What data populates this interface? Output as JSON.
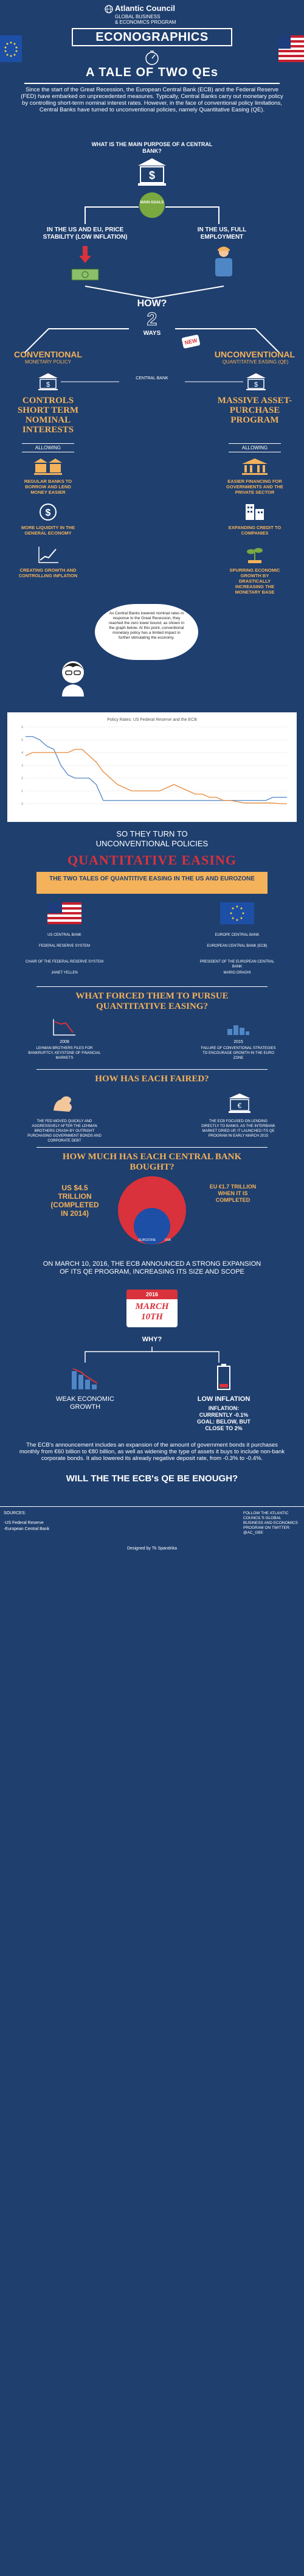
{
  "header": {
    "org": "Atlantic Council",
    "program_line1": "GLOBAL BUSINESS",
    "program_line2": "& ECONOMICS PROGRAM",
    "econographics": "ECONOGRAPHICS",
    "main_title": "A TALE OF TWO QEs"
  },
  "intro": {
    "text": "Since the start of the Great Recession, the European Central Bank (ECB) and the Federal Reserve (FED) have embarked on unprecedented measures. Typically, Central Banks carry out monetary policy by controlling short-term nominal interest rates. However, in the face of conventional policy limitations, Central Banks have turned to unconventional policies, namely Quantitative Easing (QE).",
    "question": "WHAT IS THE MAIN PURPOSE OF A CENTRAL BANK?"
  },
  "purpose": {
    "bubble": "MAIN GOALS",
    "left": "IN THE US AND EU, PRICE STABILITY (LOW INFLATION)",
    "right": "IN THE US, FULL EMPLOYMENT"
  },
  "how": {
    "question": "HOW?",
    "number": "2",
    "ways": "WAYS"
  },
  "conventional": {
    "title": "CONVENTIONAL",
    "subtitle": "MONETARY POLICY",
    "central_bank": "CENTRAL BANK",
    "action": "CONTROLS SHORT TERM NOMINAL INTERESTS",
    "allowing": "ALLOWING",
    "step1": "REGULAR BANKS TO BORROW AND LEND MONEY EASIER",
    "step2": "MORE LIQUIDITY IN THE GENERAL ECONOMY",
    "step3": "CREATING GROWTH AND CONTROLLING INFLATION"
  },
  "unconventional": {
    "badge": "NEW",
    "title": "UNCONVENTIONAL",
    "subtitle": "QUANTITATIVE EASING (QE)",
    "action": "MASSIVE ASSET-PURCHASE PROGRAM",
    "allowing": "ALLOWING",
    "step1": "EASIER FINANCING FOR GOVERNMENTS AND THE PRIVATE SECTOR",
    "step2": "EXPANDING CREDIT TO COMPANIES",
    "step3": "SPURRING ECONOMIC GROWTH BY DRASTICALLY INCREASING THE MONETARY BASE"
  },
  "speech": {
    "text": "As Central Banks lowered nominal rates in response to the Great Recession, they reached the zero lower bound, as shown in the graph below. At this point, conventional monetary policy has a limited impact in further stimulating the economy."
  },
  "chart_data": {
    "type": "line",
    "title": "Policy Rates: US Federal Reserve and the ECB",
    "series": [
      {
        "name": "US Federal Reserve",
        "color": "#4f86c6",
        "values": [
          5.25,
          5.25,
          5.0,
          4.5,
          4.25,
          3.0,
          2.25,
          2.0,
          2.0,
          2.0,
          1.5,
          0.25,
          0.25,
          0.25,
          0.25,
          0.25,
          0.25,
          0.25,
          0.25,
          0.25,
          0.25,
          0.25,
          0.25,
          0.25,
          0.25,
          0.25,
          0.25,
          0.25,
          0.25,
          0.25,
          0.25,
          0.25,
          0.25,
          0.25,
          0.25,
          0.5,
          0.5,
          0.5
        ]
      },
      {
        "name": "ECB",
        "color": "#e8893a",
        "values": [
          3.75,
          4.0,
          4.0,
          4.0,
          4.0,
          4.0,
          4.0,
          4.25,
          4.25,
          3.75,
          3.25,
          2.5,
          2.0,
          1.5,
          1.25,
          1.0,
          1.0,
          1.0,
          1.0,
          1.0,
          1.25,
          1.5,
          1.25,
          1.0,
          0.75,
          0.75,
          0.5,
          0.5,
          0.25,
          0.25,
          0.15,
          0.05,
          0.05,
          0.05,
          0.05,
          0.05,
          0.0,
          0.0
        ]
      }
    ],
    "ylim": [
      0,
      6
    ]
  },
  "turn": {
    "line1": "SO THEY TURN TO",
    "line2": "UNCONVENTIONAL POLICIES",
    "big": "QUANTITATIVE EASING"
  },
  "tales": {
    "header": "THE TWO TALES OF QUANTITIVE EASING IN THE US AND EUROZONE",
    "us_bank": "US CENTRAL BANK",
    "us_bank_name": "FEDERAL RESERVE SYSTEM",
    "us_chair": "CHAIR OF THE FEDERAL RESERVE SYSTEM",
    "us_chair_name": "JANET YELLEN",
    "eu_bank": "EUROPE CENTRAL BANK",
    "eu_bank_name": "EUROPEAN CENTRAL BANK (ECB)",
    "eu_chair": "PRESIDENT OF THE EUROPEAN CENTRAL BANK",
    "eu_chair_name": "MARIO DRAGHI"
  },
  "forced": {
    "question": "WHAT FORCED THEM TO PURSUE QUANTITATIVE EASING?",
    "us_year": "2008",
    "us_text": "LEHMAN BROTHERS FILES FOR BANKRUPTCY, KEYSTONE OF FINANCIAL MARKETS",
    "eu_year": "2015",
    "eu_text": "FAILURE OF CONVENTIONAL STRATEGIES TO ENCOURAGE GROWTH IN THE EURO ZONE"
  },
  "fared": {
    "question": "HOW HAS EACH FAIRED?",
    "us_text": "THE FED MOVED QUICKLY AND AGGRESSIVELY AFTER THE LEHMAN BROTHERS CRASH BY OUTRIGHT PURCHASING GOVERNMENT BONDS AND CORPORATE DEBT",
    "eu_text": "THE ECB FOCUSED ON LENDING DIRECTLY TO BANKS. AS THE INTERBANK MARKET DRIED UP, IT LAUNCHED ITS QE PROGRAM IN EARLY MARCH 2015"
  },
  "bought": {
    "question": "HOW MUCH HAS EACH CENTRAL BANK BOUGHT?",
    "us_amount": "US $4.5 TRILLION (COMPLETED IN 2014)",
    "eu_amount": "EU €1.7 TRILLION WHEN IT IS COMPLETED",
    "circle_label_eu": "EUROZONE",
    "circle_label_us": "USA"
  },
  "march": {
    "text": "ON MARCH 10, 2016, THE ECB ANNOUNCED A STRONG EXPANSION OF ITS QE PROGRAM, INCREASING ITS SIZE AND SCOPE",
    "year": "2016",
    "date": "MARCH 10TH",
    "why": "WHY?"
  },
  "why": {
    "left": "WEAK ECONOMIC GROWTH",
    "right_title": "LOW INFLATION",
    "right_detail": "INFLATION: CURRENTLY -0.1% GOAL: BELOW, BUT CLOSE TO 2%",
    "text": "The ECB's announcement includes an expansion of the amount of government bonds it purchases monthly from €60 billion to €80 billion, as well as widening the type of assets it buys to include non-bank corporate bonds. It also lowered its already negative deposit rate, from -0.3% to -0.4%."
  },
  "closing": {
    "question": "WILL THE THE ECB's QE BE ENOUGH?"
  },
  "footer": {
    "sources_label": "SOURCES:",
    "source1": "-US Federal Reserve",
    "source2": "-European Central Bank",
    "follow": "FOLLOW THE ATLANTIC COUNCIL'S GLOBAL BUSINESS AND ECONOMICS PROGRAM ON TWITTER: @AC_GBE",
    "credit": "Designed by Tk Spandrika"
  },
  "colors": {
    "navy": "#1f3f6e",
    "red": "#d9323c",
    "orange": "#f4b25b",
    "green": "#7aa841"
  }
}
